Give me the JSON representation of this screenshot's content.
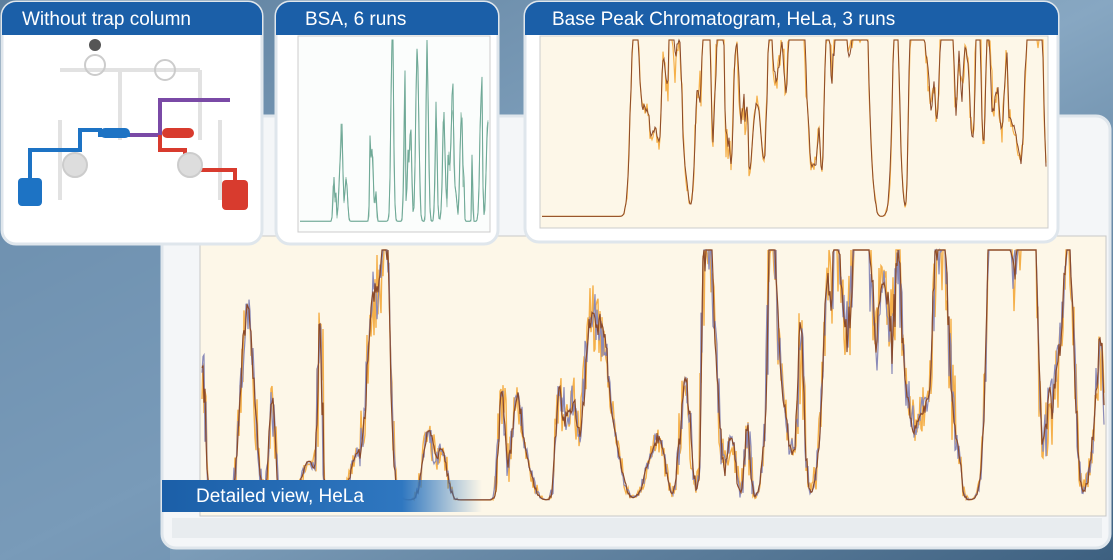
{
  "panels": [
    {
      "title": "Without trap column"
    },
    {
      "title": "BSA, 6 runs"
    },
    {
      "title": "Base Peak Chromatogram, HeLa, 3 runs"
    }
  ],
  "detail": {
    "title": "Detailed view, HeLa"
  }
}
